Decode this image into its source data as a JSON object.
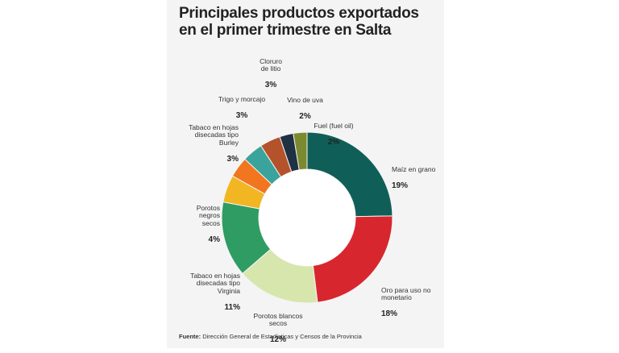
{
  "title_line1": "Principales productos exportados",
  "title_line2": "en el primer trimestre en Salta",
  "source_label": "Fuente:",
  "source_text": "Dirección General de Estadísticas y Censos de la Provincia",
  "chart_data": {
    "type": "pie",
    "title": "Principales productos exportados en el primer trimestre en Salta",
    "slices": [
      {
        "label": "Maíz en grano",
        "pct_text": "19%",
        "value": 19,
        "color": "#0f5f58"
      },
      {
        "label": "Oro para uso no\nmonetario",
        "pct_text": "18%",
        "value": 18,
        "color": "#d8262f"
      },
      {
        "label": "Porotos blancos\nsecos",
        "pct_text": "12%",
        "value": 12,
        "color": "#d7e6ad"
      },
      {
        "label": "Tabaco en hojas\ndisecadas tipo\nVirginia",
        "pct_text": "11%",
        "value": 11,
        "color": "#2e9c63"
      },
      {
        "label": "Porotos\nnegros\nsecos",
        "pct_text": "4%",
        "value": 4,
        "color": "#f2b623"
      },
      {
        "label": "Tabaco en hojas\ndisecadas tipo\nBurley",
        "pct_text": "3%",
        "value": 3,
        "color": "#f2751f"
      },
      {
        "label": "Trigo y morcajo",
        "pct_text": "3%",
        "value": 3,
        "color": "#3aa39b"
      },
      {
        "label": "Cloruro\nde litio",
        "pct_text": "3%",
        "value": 3,
        "color": "#b4532b"
      },
      {
        "label": "Vino de uva",
        "pct_text": "2%",
        "value": 2,
        "color": "#1f3142"
      },
      {
        "label": "Fuel (fuel oil)",
        "pct_text": "2%",
        "value": 2,
        "color": "#7b8a2f"
      }
    ]
  }
}
